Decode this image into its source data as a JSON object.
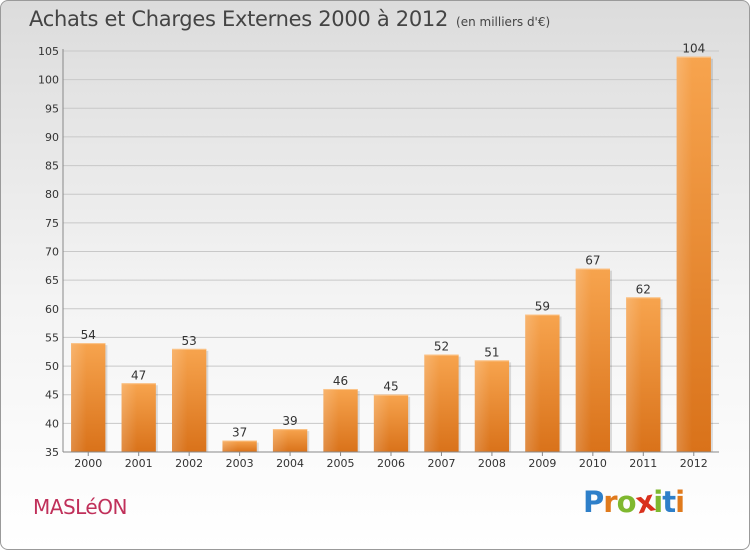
{
  "header": {
    "title": "Achats et Charges Externes 2000 à 2012",
    "unit": "(en milliers d'€)"
  },
  "town": "MASLéON",
  "logo": {
    "text": "Proxiti",
    "letter_colors": [
      "#2e7fc9",
      "#e07a1c",
      "#7fb82f",
      "#d9301c",
      "#7fb82f",
      "#2e7fc9",
      "#e07a1c"
    ]
  },
  "chart_data": {
    "type": "bar",
    "categories": [
      "2000",
      "2001",
      "2002",
      "2003",
      "2004",
      "2005",
      "2006",
      "2007",
      "2008",
      "2009",
      "2010",
      "2011",
      "2012"
    ],
    "values": [
      54,
      47,
      53,
      37,
      39,
      46,
      45,
      52,
      51,
      59,
      67,
      62,
      104
    ],
    "ylim": [
      35,
      105
    ],
    "yticks": [
      35,
      40,
      45,
      50,
      55,
      60,
      65,
      70,
      75,
      80,
      85,
      90,
      95,
      100,
      105
    ],
    "grid": true,
    "bar_color": "#f39c3c"
  }
}
